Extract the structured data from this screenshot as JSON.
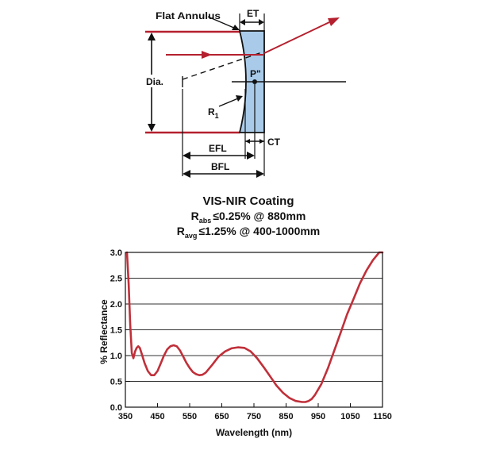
{
  "diagram": {
    "labels": {
      "flat_annulus": "Flat Annulus",
      "et": "ET",
      "dia": "Dia.",
      "p": "P\"",
      "r1": "R",
      "r1_sub": "1",
      "efl": "EFL",
      "bfl": "BFL",
      "ct": "CT"
    },
    "colors": {
      "lens_fill": "#a9cbe9",
      "ray": "#b5202e",
      "ink": "#111111"
    }
  },
  "chart_data": {
    "type": "line",
    "title": "VIS-NIR Coating",
    "subtitle_lines": [
      {
        "symbol": "R",
        "sub": "abs",
        "text": "≤0.25% @ 880mm"
      },
      {
        "symbol": "R",
        "sub": "avg",
        "text": "≤1.25% @ 400-1000mm"
      }
    ],
    "xlabel": "Wavelength (nm)",
    "ylabel": "% Reflectance",
    "xlim": [
      350,
      1150
    ],
    "ylim": [
      0,
      3
    ],
    "x_ticks": [
      "350",
      "450",
      "550",
      "650",
      "750",
      "850",
      "950",
      "1050",
      "1150"
    ],
    "y_ticks": [
      "0.0",
      "0.5",
      "1.0",
      "1.5",
      "2.0",
      "2.5",
      "3.0"
    ],
    "grid": "horizontal",
    "line_color": "#c0303a",
    "series": [
      {
        "x": [
          355,
          360,
          365,
          370,
          375,
          380,
          385,
          390,
          395,
          400,
          410,
          420,
          430,
          440,
          450,
          460,
          470,
          480,
          490,
          500,
          510,
          520,
          530,
          540,
          550,
          560,
          570,
          580,
          590,
          600,
          620,
          640,
          660,
          680,
          700,
          720,
          740,
          760,
          780,
          800,
          820,
          840,
          860,
          880,
          900,
          910,
          920,
          930,
          940,
          960,
          980,
          1000,
          1020,
          1040,
          1060,
          1080,
          1100,
          1120,
          1140,
          1150
        ],
        "y": [
          3.0,
          2.4,
          1.6,
          1.05,
          0.95,
          1.08,
          1.15,
          1.18,
          1.15,
          1.05,
          0.85,
          0.7,
          0.62,
          0.62,
          0.7,
          0.85,
          1.0,
          1.12,
          1.18,
          1.2,
          1.18,
          1.1,
          0.98,
          0.86,
          0.76,
          0.68,
          0.64,
          0.62,
          0.63,
          0.67,
          0.82,
          0.98,
          1.08,
          1.14,
          1.16,
          1.15,
          1.08,
          0.95,
          0.78,
          0.6,
          0.42,
          0.28,
          0.18,
          0.12,
          0.1,
          0.1,
          0.12,
          0.16,
          0.24,
          0.45,
          0.75,
          1.1,
          1.45,
          1.8,
          2.1,
          2.4,
          2.65,
          2.85,
          3.0,
          3.0
        ]
      }
    ]
  }
}
